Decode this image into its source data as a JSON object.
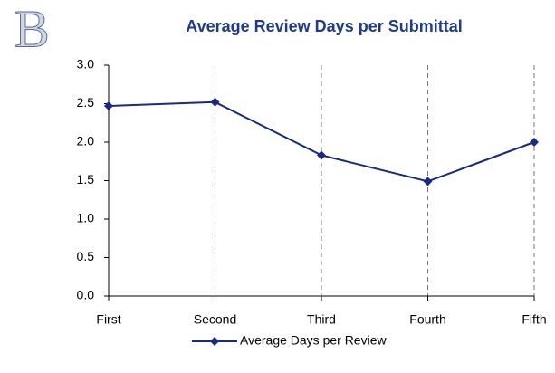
{
  "chart_data": {
    "type": "line",
    "title": "Average Review Days per Submittal",
    "annotation": "B",
    "categories": [
      "First",
      "Second",
      "Third",
      "Fourth",
      "Fifth"
    ],
    "series": [
      {
        "name": "Average Days per Review",
        "color": "#1a2a80",
        "values": [
          2.47,
          2.52,
          1.83,
          1.49,
          2.0
        ]
      }
    ],
    "ylim": [
      0,
      3
    ],
    "yticks": [
      {
        "value": 0,
        "label": "0.0"
      },
      {
        "value": 0.5,
        "label": "0.5"
      },
      {
        "value": 1,
        "label": "1.0"
      },
      {
        "value": 1.5,
        "label": "1.5"
      },
      {
        "value": 2,
        "label": "2.0"
      },
      {
        "value": 2.5,
        "label": "2.5"
      },
      {
        "value": 3,
        "label": "3.0"
      }
    ],
    "grid": true,
    "legend": "bottom"
  }
}
